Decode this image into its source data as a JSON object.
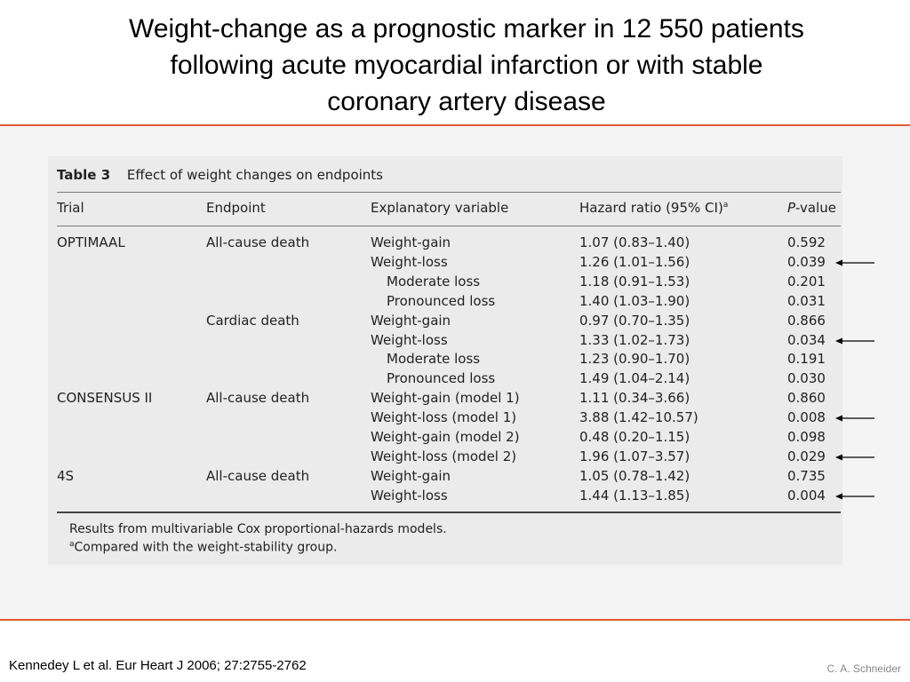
{
  "slide": {
    "title_lines": [
      "Weight-change as a prognostic marker in 12 550 patients",
      "following acute myocardial infarction or with stable",
      "coronary artery disease"
    ],
    "citation": "Kennedey L et al. Eur Heart J 2006; 27:2755-2762",
    "author": "C. A. Schneider",
    "accent_color": "#e05a2b"
  },
  "table": {
    "label": "Table 3",
    "caption": "Effect of weight changes on endpoints",
    "headers": {
      "trial": "Trial",
      "endpoint": "Endpoint",
      "variable": "Explanatory variable",
      "hazard_ratio": "Hazard ratio (95% CI)",
      "hazard_ratio_sup": "a",
      "p_italic": "P",
      "p_rest": "-value"
    },
    "rows": [
      {
        "trial": "OPTIMAAL",
        "endpoint": "All-cause death",
        "variable": "Weight-gain",
        "indent": false,
        "hr": "1.07 (0.83–1.40)",
        "p": "0.592",
        "arrow": false
      },
      {
        "trial": "",
        "endpoint": "",
        "variable": "Weight-loss",
        "indent": false,
        "hr": "1.26 (1.01–1.56)",
        "p": "0.039",
        "arrow": true
      },
      {
        "trial": "",
        "endpoint": "",
        "variable": "Moderate loss",
        "indent": true,
        "hr": "1.18 (0.91–1.53)",
        "p": "0.201",
        "arrow": false
      },
      {
        "trial": "",
        "endpoint": "",
        "variable": "Pronounced loss",
        "indent": true,
        "hr": "1.40 (1.03–1.90)",
        "p": "0.031",
        "arrow": false
      },
      {
        "trial": "",
        "endpoint": "Cardiac death",
        "variable": "Weight-gain",
        "indent": false,
        "hr": "0.97 (0.70–1.35)",
        "p": "0.866",
        "arrow": false
      },
      {
        "trial": "",
        "endpoint": "",
        "variable": "Weight-loss",
        "indent": false,
        "hr": "1.33 (1.02–1.73)",
        "p": "0.034",
        "arrow": true
      },
      {
        "trial": "",
        "endpoint": "",
        "variable": "Moderate loss",
        "indent": true,
        "hr": "1.23 (0.90–1.70)",
        "p": "0.191",
        "arrow": false
      },
      {
        "trial": "",
        "endpoint": "",
        "variable": "Pronounced loss",
        "indent": true,
        "hr": "1.49 (1.04–2.14)",
        "p": "0.030",
        "arrow": false
      },
      {
        "trial": "CONSENSUS II",
        "endpoint": "All-cause death",
        "variable": "Weight-gain (model 1)",
        "indent": false,
        "hr": "1.11 (0.34–3.66)",
        "p": "0.860",
        "arrow": false
      },
      {
        "trial": "",
        "endpoint": "",
        "variable": "Weight-loss (model 1)",
        "indent": false,
        "hr": "3.88 (1.42–10.57)",
        "p": "0.008",
        "arrow": true
      },
      {
        "trial": "",
        "endpoint": "",
        "variable": "Weight-gain (model 2)",
        "indent": false,
        "hr": "0.48 (0.20–1.15)",
        "p": "0.098",
        "arrow": false
      },
      {
        "trial": "",
        "endpoint": "",
        "variable": "Weight-loss (model 2)",
        "indent": false,
        "hr": "1.96 (1.07–3.57)",
        "p": "0.029",
        "arrow": true
      },
      {
        "trial": "4S",
        "endpoint": "All-cause death",
        "variable": "Weight-gain",
        "indent": false,
        "hr": "1.05 (0.78–1.42)",
        "p": "0.735",
        "arrow": false
      },
      {
        "trial": "",
        "endpoint": "",
        "variable": "Weight-loss",
        "indent": false,
        "hr": "1.44 (1.13–1.85)",
        "p": "0.004",
        "arrow": true
      }
    ],
    "footnotes": {
      "main": "Results from multivariable Cox proportional-hazards models.",
      "a_marker": "a",
      "a_text": "Compared with the weight-stability group."
    }
  }
}
